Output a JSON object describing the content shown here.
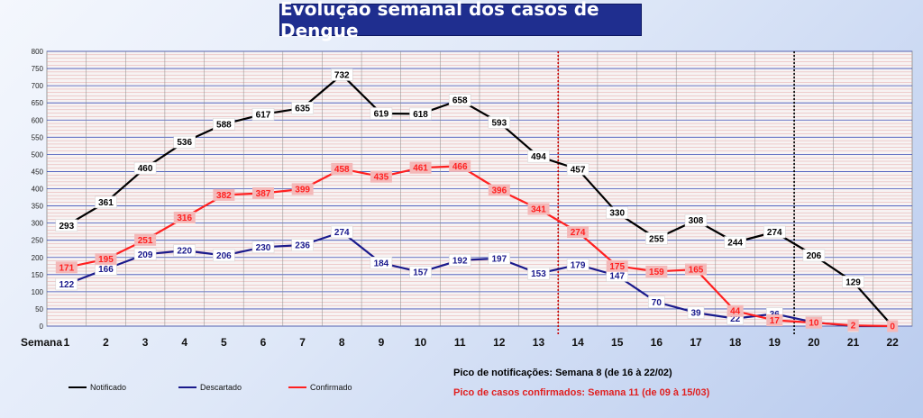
{
  "title": "Evolução semanal dos casos de Dengue",
  "notes": {
    "peak_notified": "Pico de notificações:  Semana 8 (de 16 à 22/02)",
    "peak_confirmed": "Pico de casos confirmados:  Semana 11 (de 09 à 15/03)"
  },
  "colors": {
    "title_bg": "#1f2e8f",
    "notificado": "#000000",
    "descartado": "#1a1a8c",
    "confirmado": "#ff2020",
    "confirmed_label_bg": "#f4b8b8"
  },
  "chart_data": {
    "type": "line",
    "title": "Evolução semanal dos casos de Dengue",
    "xlabel": "Semana",
    "categories": [
      "1",
      "2",
      "3",
      "4",
      "5",
      "6",
      "7",
      "8",
      "9",
      "10",
      "11",
      "12",
      "13",
      "14",
      "15",
      "16",
      "17",
      "18",
      "19",
      "20",
      "21",
      "22"
    ],
    "ylim": [
      0,
      800
    ],
    "yticks": [
      0,
      50,
      100,
      150,
      200,
      250,
      300,
      350,
      400,
      450,
      500,
      550,
      600,
      650,
      700,
      750,
      800
    ],
    "grid": true,
    "legend_position": "bottom-left",
    "reference_lines": [
      {
        "after_week": 13,
        "style": "dotted",
        "color": "#cc0000"
      },
      {
        "after_week": 19,
        "style": "dotted",
        "color": "#000000"
      }
    ],
    "series": [
      {
        "name": "Notificado",
        "color": "#000000",
        "values": [
          293,
          361,
          460,
          536,
          588,
          617,
          635,
          732,
          619,
          618,
          658,
          593,
          494,
          457,
          330,
          255,
          308,
          244,
          274,
          206,
          129,
          0
        ],
        "labels": [
          "293",
          "361",
          "460",
          "536",
          "588",
          "617",
          "635",
          "732",
          "619",
          "618",
          "658",
          "593",
          "494",
          "457",
          "330",
          "255",
          "308",
          "244",
          "274",
          "206",
          "129",
          ""
        ]
      },
      {
        "name": "Descartado",
        "color": "#1a1a8c",
        "values": [
          122,
          166,
          209,
          220,
          206,
          230,
          236,
          274,
          184,
          157,
          192,
          197,
          153,
          179,
          147,
          70,
          39,
          22,
          36,
          11,
          0,
          0
        ],
        "labels": [
          "122",
          "166",
          "209",
          "220",
          "206",
          "230",
          "236",
          "274",
          "184",
          "157",
          "192",
          "197",
          "153",
          "179",
          "147",
          "70",
          "39",
          "22",
          "36",
          "11",
          "0",
          ""
        ]
      },
      {
        "name": "Confirmado",
        "color": "#ff2020",
        "values": [
          171,
          195,
          251,
          316,
          382,
          387,
          399,
          458,
          435,
          461,
          466,
          396,
          341,
          274,
          175,
          159,
          165,
          44,
          17,
          10,
          2,
          0
        ],
        "labels": [
          "171",
          "195",
          "251",
          "316",
          "382",
          "387",
          "399",
          "458",
          "435",
          "461",
          "466",
          "396",
          "341",
          "274",
          "175",
          "159",
          "165",
          "44",
          "17",
          "10",
          "2",
          "0"
        ]
      }
    ]
  }
}
